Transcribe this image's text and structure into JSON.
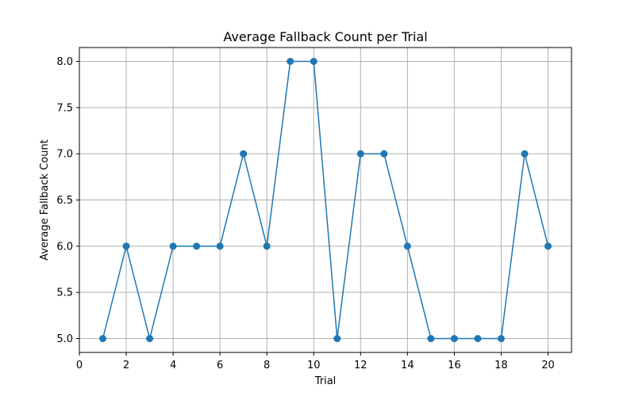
{
  "chart_data": {
    "type": "line",
    "title": "Average Fallback Count per Trial",
    "xlabel": "Trial",
    "ylabel": "Average Fallback Count",
    "xlim": [
      0,
      21
    ],
    "ylim": [
      4.85,
      8.15
    ],
    "x_ticks": [
      0,
      2,
      4,
      6,
      8,
      10,
      12,
      14,
      16,
      18,
      20
    ],
    "y_ticks": [
      "5.0",
      "5.5",
      "6.0",
      "6.5",
      "7.0",
      "7.5",
      "8.0"
    ],
    "grid": true,
    "line_color": "#1f77b4",
    "marker": "circle",
    "x": [
      1,
      2,
      3,
      4,
      5,
      6,
      7,
      8,
      9,
      10,
      11,
      12,
      13,
      14,
      15,
      16,
      17,
      18,
      19,
      20
    ],
    "y": [
      5,
      6,
      5,
      6,
      6,
      6,
      7,
      6,
      8,
      8,
      5,
      7,
      7,
      6,
      5,
      5,
      5,
      5,
      7,
      6
    ]
  }
}
